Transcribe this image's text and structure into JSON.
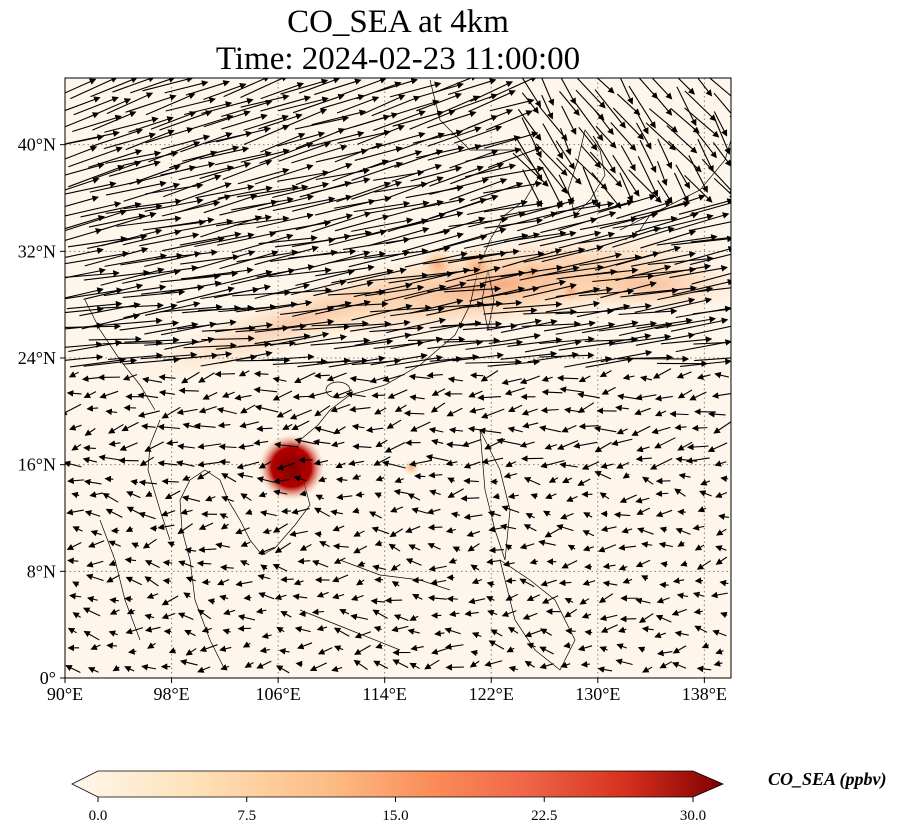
{
  "title": {
    "line1": "CO_SEA at 4km",
    "line2": "Time: 2024-02-23 11:00:00"
  },
  "map": {
    "lon_range": [
      90,
      140
    ],
    "lat_range": [
      0,
      45
    ],
    "x_ticks": [
      {
        "value": 90,
        "label": "90°E"
      },
      {
        "value": 98,
        "label": "98°E"
      },
      {
        "value": 106,
        "label": "106°E"
      },
      {
        "value": 114,
        "label": "114°E"
      },
      {
        "value": 122,
        "label": "122°E"
      },
      {
        "value": 130,
        "label": "130°E"
      },
      {
        "value": 138,
        "label": "138°E"
      }
    ],
    "y_ticks": [
      {
        "value": 0,
        "label": "0°"
      },
      {
        "value": 8,
        "label": "8°N"
      },
      {
        "value": 16,
        "label": "16°N"
      },
      {
        "value": 24,
        "label": "24°N"
      },
      {
        "value": 32,
        "label": "32°N"
      },
      {
        "value": 40,
        "label": "40°N"
      }
    ],
    "gridlines": "dotted",
    "field": "wind vectors over CO concentration",
    "hotspots": [
      {
        "lon": 107,
        "lat": 15.8,
        "value": 30
      },
      {
        "lon": 116,
        "lat": 15.8,
        "value": 3
      },
      {
        "lon": 118,
        "lat": 31,
        "value": 14
      },
      {
        "lon": 121,
        "lat": 30.8,
        "value": 16
      },
      {
        "lon": 125,
        "lat": 30.3,
        "value": 11
      },
      {
        "lon": 128,
        "lat": 29,
        "value": 7
      }
    ]
  },
  "colorbar": {
    "ticks": [
      "0.0",
      "7.5",
      "15.0",
      "22.5",
      "30.0"
    ],
    "min": 0,
    "max": 30,
    "colormap": "OrRd",
    "label": "CO_SEA (ppbv)"
  },
  "colors": {
    "background_fill": "#fef6eb",
    "plume_light": "#fde0c0",
    "plume_mid": "#fcb07a",
    "plume_high": "#f08a5a",
    "hotspot": "#8b0000",
    "coastline": "#000000",
    "arrow": "#000000"
  }
}
